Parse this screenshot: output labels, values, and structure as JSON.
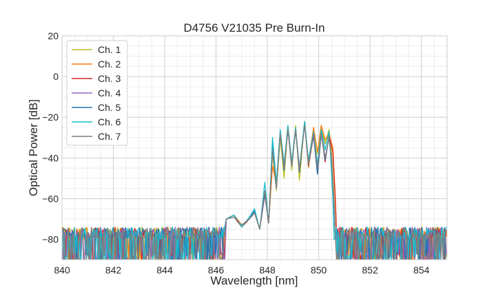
{
  "chart_data": {
    "type": "line",
    "title": "D4756 V21035 Pre Burn-In",
    "xlabel": "Wavelength [nm]",
    "ylabel": "Optical Power [dB]",
    "xlim": [
      840,
      855
    ],
    "ylim": [
      -90,
      20
    ],
    "xticks": [
      {
        "value": 840,
        "label": "840"
      },
      {
        "value": 842,
        "label": "842"
      },
      {
        "value": 844,
        "label": "844"
      },
      {
        "value": 846,
        "label": "846"
      },
      {
        "value": 848,
        "label": "848"
      },
      {
        "value": 850,
        "label": "850"
      },
      {
        "value": 852,
        "label": "852"
      },
      {
        "value": 854,
        "label": "854"
      }
    ],
    "yticks": [
      {
        "value": 20,
        "label": "20"
      },
      {
        "value": 0,
        "label": "0"
      },
      {
        "value": -20,
        "label": "−20"
      },
      {
        "value": -40,
        "label": "−40"
      },
      {
        "value": -60,
        "label": "−60"
      },
      {
        "value": -80,
        "label": "−80"
      }
    ],
    "grid": true,
    "minor_grid": true,
    "legend_position": "top-left",
    "noise_floor_db": -77,
    "series": [
      {
        "name": "Ch. 1",
        "color": "#bcbd22",
        "points": [
          [
            846.4,
            -70
          ],
          [
            846.7,
            -68
          ],
          [
            847.0,
            -73
          ],
          [
            847.3,
            -70
          ],
          [
            847.5,
            -66
          ],
          [
            847.7,
            -75
          ],
          [
            847.9,
            -58
          ],
          [
            848.05,
            -72
          ],
          [
            848.2,
            -38
          ],
          [
            848.35,
            -56
          ],
          [
            848.5,
            -30
          ],
          [
            848.65,
            -50
          ],
          [
            848.8,
            -25
          ],
          [
            848.95,
            -46
          ],
          [
            849.1,
            -24
          ],
          [
            849.25,
            -51
          ],
          [
            849.45,
            -22
          ],
          [
            849.6,
            -45
          ],
          [
            849.8,
            -25
          ],
          [
            849.95,
            -38
          ],
          [
            850.1,
            -24
          ],
          [
            850.25,
            -33
          ],
          [
            850.4,
            -26
          ],
          [
            850.5,
            -36
          ],
          [
            850.6,
            -60
          ],
          [
            850.65,
            -80
          ]
        ]
      },
      {
        "name": "Ch. 2",
        "color": "#ff7f0e",
        "points": [
          [
            846.4,
            -70
          ],
          [
            846.7,
            -68
          ],
          [
            847.0,
            -73
          ],
          [
            847.3,
            -70
          ],
          [
            847.5,
            -66
          ],
          [
            847.7,
            -75
          ],
          [
            847.9,
            -58
          ],
          [
            848.05,
            -72
          ],
          [
            848.2,
            -44
          ],
          [
            848.35,
            -53
          ],
          [
            848.5,
            -28
          ],
          [
            848.65,
            -44
          ],
          [
            848.8,
            -24
          ],
          [
            848.95,
            -42
          ],
          [
            849.1,
            -26
          ],
          [
            849.25,
            -47
          ],
          [
            849.45,
            -22
          ],
          [
            849.6,
            -42
          ],
          [
            849.8,
            -25
          ],
          [
            849.95,
            -37
          ],
          [
            850.1,
            -24
          ],
          [
            850.25,
            -31
          ],
          [
            850.4,
            -28
          ],
          [
            850.55,
            -35
          ],
          [
            850.65,
            -60
          ],
          [
            850.7,
            -80
          ]
        ]
      },
      {
        "name": "Ch. 3",
        "color": "#d62728",
        "points": [
          [
            846.4,
            -70
          ],
          [
            846.7,
            -69
          ],
          [
            847.0,
            -74
          ],
          [
            847.3,
            -70
          ],
          [
            847.5,
            -67
          ],
          [
            847.7,
            -75
          ],
          [
            847.9,
            -58
          ],
          [
            848.05,
            -72
          ],
          [
            848.2,
            -36
          ],
          [
            848.35,
            -54
          ],
          [
            848.5,
            -28
          ],
          [
            848.65,
            -44
          ],
          [
            848.8,
            -26
          ],
          [
            848.95,
            -44
          ],
          [
            849.1,
            -26
          ],
          [
            849.25,
            -47
          ],
          [
            849.45,
            -23
          ],
          [
            849.6,
            -44
          ],
          [
            849.8,
            -29
          ],
          [
            849.95,
            -48
          ],
          [
            850.1,
            -28
          ],
          [
            850.25,
            -42
          ],
          [
            850.4,
            -29
          ],
          [
            850.55,
            -37
          ],
          [
            850.65,
            -62
          ],
          [
            850.7,
            -80
          ]
        ]
      },
      {
        "name": "Ch. 4",
        "color": "#9467bd",
        "points": [
          [
            846.4,
            -70
          ],
          [
            846.7,
            -69
          ],
          [
            847.0,
            -73
          ],
          [
            847.3,
            -70
          ],
          [
            847.5,
            -66
          ],
          [
            847.7,
            -75
          ],
          [
            847.9,
            -58
          ],
          [
            848.05,
            -72
          ],
          [
            848.2,
            -34
          ],
          [
            848.35,
            -55
          ],
          [
            848.5,
            -27
          ],
          [
            848.65,
            -46
          ],
          [
            848.8,
            -26
          ],
          [
            848.95,
            -44
          ],
          [
            849.1,
            -26
          ],
          [
            849.25,
            -46
          ],
          [
            849.45,
            -23
          ],
          [
            849.6,
            -43
          ],
          [
            849.8,
            -28
          ],
          [
            849.95,
            -44
          ],
          [
            850.1,
            -28
          ],
          [
            850.25,
            -40
          ],
          [
            850.4,
            -30
          ],
          [
            850.5,
            -40
          ],
          [
            850.6,
            -64
          ],
          [
            850.65,
            -80
          ]
        ]
      },
      {
        "name": "Ch. 5",
        "color": "#1f77b4",
        "points": [
          [
            846.4,
            -70
          ],
          [
            846.7,
            -69
          ],
          [
            847.0,
            -73
          ],
          [
            847.3,
            -70
          ],
          [
            847.5,
            -66
          ],
          [
            847.7,
            -75
          ],
          [
            847.9,
            -57
          ],
          [
            848.05,
            -72
          ],
          [
            848.2,
            -34
          ],
          [
            848.35,
            -55
          ],
          [
            848.5,
            -27
          ],
          [
            848.65,
            -46
          ],
          [
            848.8,
            -25
          ],
          [
            848.95,
            -44
          ],
          [
            849.1,
            -26
          ],
          [
            849.25,
            -47
          ],
          [
            849.45,
            -23
          ],
          [
            849.6,
            -43
          ],
          [
            849.8,
            -29
          ],
          [
            849.95,
            -48
          ],
          [
            850.1,
            -28
          ],
          [
            850.25,
            -41
          ],
          [
            850.4,
            -30
          ],
          [
            850.5,
            -42
          ],
          [
            850.6,
            -66
          ],
          [
            850.65,
            -80
          ]
        ]
      },
      {
        "name": "Ch. 6",
        "color": "#17becf",
        "points": [
          [
            846.4,
            -70
          ],
          [
            846.7,
            -68
          ],
          [
            847.0,
            -74
          ],
          [
            847.3,
            -69
          ],
          [
            847.5,
            -65
          ],
          [
            847.7,
            -75
          ],
          [
            847.9,
            -52
          ],
          [
            848.05,
            -72
          ],
          [
            848.2,
            -30
          ],
          [
            848.35,
            -52
          ],
          [
            848.5,
            -26
          ],
          [
            848.65,
            -43
          ],
          [
            848.8,
            -24
          ],
          [
            848.95,
            -42
          ],
          [
            849.1,
            -25
          ],
          [
            849.25,
            -45
          ],
          [
            849.45,
            -22
          ],
          [
            849.6,
            -41
          ],
          [
            849.8,
            -27
          ],
          [
            849.95,
            -43
          ],
          [
            850.1,
            -26
          ],
          [
            850.25,
            -36
          ],
          [
            850.4,
            -27
          ],
          [
            850.45,
            -36
          ],
          [
            850.55,
            -60
          ],
          [
            850.6,
            -80
          ]
        ]
      },
      {
        "name": "Ch. 7",
        "color": "#7f7f7f",
        "points": [
          [
            846.4,
            -70
          ],
          [
            846.7,
            -69
          ],
          [
            847.0,
            -73
          ],
          [
            847.3,
            -70
          ],
          [
            847.5,
            -67
          ],
          [
            847.7,
            -75
          ],
          [
            847.9,
            -56
          ],
          [
            848.05,
            -72
          ],
          [
            848.2,
            -36
          ],
          [
            848.35,
            -55
          ],
          [
            848.5,
            -28
          ],
          [
            848.65,
            -45
          ],
          [
            848.8,
            -26
          ],
          [
            848.95,
            -44
          ],
          [
            849.1,
            -26
          ],
          [
            849.25,
            -46
          ],
          [
            849.45,
            -24
          ],
          [
            849.6,
            -43
          ],
          [
            849.8,
            -28
          ],
          [
            849.95,
            -45
          ],
          [
            850.1,
            -28
          ],
          [
            850.25,
            -40
          ],
          [
            850.4,
            -30
          ],
          [
            850.5,
            -41
          ],
          [
            850.6,
            -64
          ],
          [
            850.65,
            -80
          ]
        ]
      }
    ]
  }
}
